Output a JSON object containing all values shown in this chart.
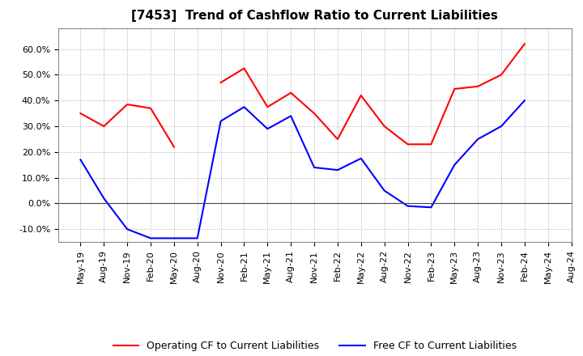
{
  "title": "[7453]  Trend of Cashflow Ratio to Current Liabilities",
  "x_labels": [
    "May-19",
    "Aug-19",
    "Nov-19",
    "Feb-20",
    "May-20",
    "Aug-20",
    "Nov-20",
    "Feb-21",
    "May-21",
    "Aug-21",
    "Nov-21",
    "Feb-22",
    "May-22",
    "Aug-22",
    "Nov-22",
    "Feb-23",
    "May-23",
    "Aug-23",
    "Nov-23",
    "Feb-24",
    "May-24",
    "Aug-24"
  ],
  "operating_cf": [
    35.0,
    30.0,
    38.5,
    37.0,
    22.0,
    null,
    47.0,
    52.5,
    37.5,
    43.0,
    35.0,
    25.0,
    42.0,
    30.0,
    23.0,
    23.0,
    44.5,
    45.5,
    50.0,
    62.0,
    null,
    null
  ],
  "free_cf": [
    17.0,
    2.0,
    -10.0,
    -13.5,
    -13.5,
    -13.5,
    32.0,
    37.5,
    29.0,
    34.0,
    14.0,
    13.0,
    17.5,
    5.0,
    -1.0,
    -1.5,
    15.0,
    25.0,
    30.0,
    40.0,
    null,
    null
  ],
  "ylim": [
    -15,
    68
  ],
  "yticks": [
    -10,
    0,
    10,
    20,
    30,
    40,
    50,
    60
  ],
  "ytick_labels": [
    "-10.0%",
    "0.0%",
    "10.0%",
    "20.0%",
    "30.0%",
    "40.0%",
    "50.0%",
    "60.0%"
  ],
  "operating_color": "#ff0000",
  "free_color": "#0000ff",
  "background_color": "#ffffff",
  "grid_color": "#aaaaaa",
  "legend_op": "Operating CF to Current Liabilities",
  "legend_free": "Free CF to Current Liabilities",
  "title_fontsize": 11,
  "tick_fontsize": 8,
  "legend_fontsize": 9
}
